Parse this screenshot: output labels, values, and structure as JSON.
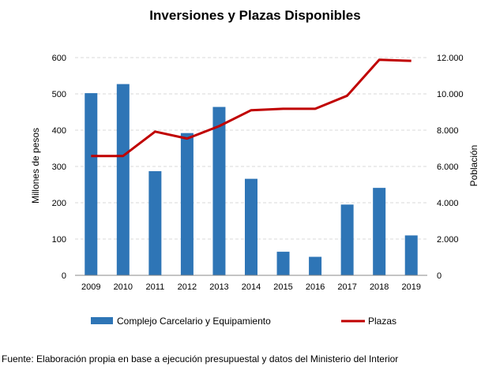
{
  "chart_data": {
    "type": "bar",
    "title": "Inversiones y Plazas  Disponibles",
    "categories": [
      "2009",
      "2010",
      "2011",
      "2012",
      "2013",
      "2014",
      "2015",
      "2016",
      "2017",
      "2018",
      "2019"
    ],
    "ylabel": "Millones de pesos",
    "y2label": "Población",
    "ylim": [
      0,
      600
    ],
    "y2lim": [
      0,
      12000
    ],
    "yticks": [
      "0",
      "100",
      "200",
      "300",
      "400",
      "500",
      "600"
    ],
    "y2ticks": [
      "0",
      "2.000",
      "4.000",
      "6.000",
      "8.000",
      "10.000",
      "12.000"
    ],
    "grid": true,
    "legend_position": "bottom",
    "series": [
      {
        "name": "Complejo Carcelario y Equipamiento",
        "type": "bar",
        "axis": "left",
        "color": "#2e75b6",
        "values": [
          502,
          527,
          287,
          392,
          464,
          266,
          65,
          51,
          195,
          241,
          110
        ]
      },
      {
        "name": "Plazas",
        "type": "line",
        "axis": "right",
        "color": "#c00000",
        "values": [
          6580,
          6580,
          7920,
          7540,
          8220,
          9100,
          9180,
          9180,
          9900,
          11880,
          11820
        ]
      }
    ]
  },
  "source": "Fuente: Elaboración propia en base a ejecución presupuestal y datos del Ministerio del Interior"
}
